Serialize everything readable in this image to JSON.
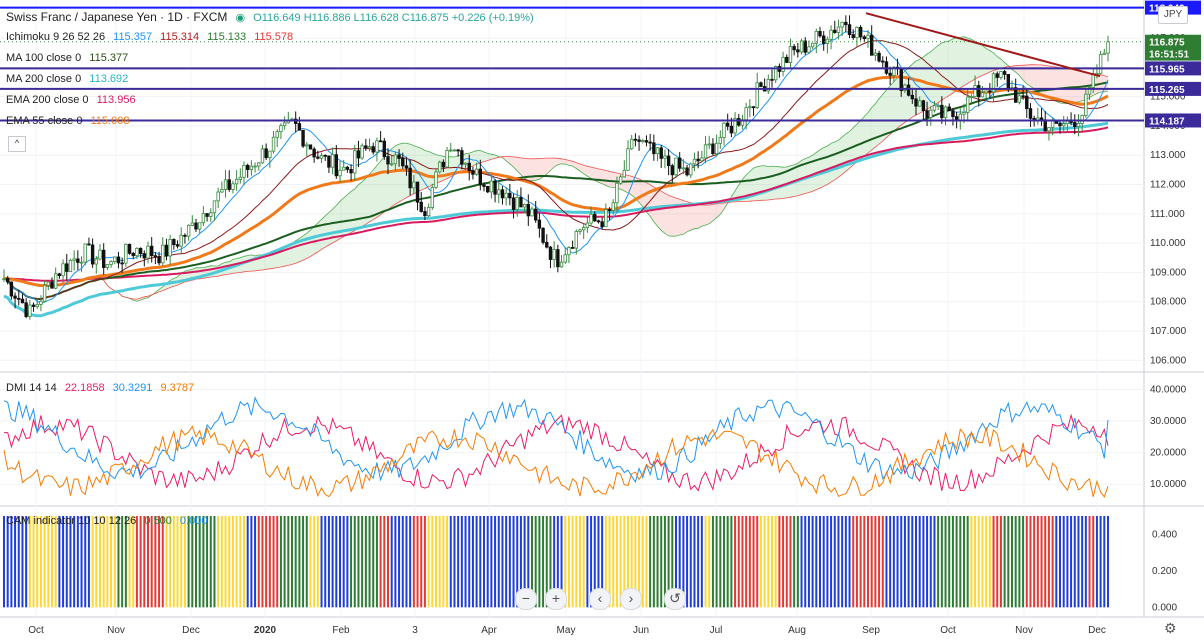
{
  "header": {
    "symbol": "Swiss Franc / Japanese Yen · 1D · FXCM",
    "ohlc": "O116.649 H116.886 L116.628 C116.875 +0.226 (+0.19%)",
    "currency": "JPY"
  },
  "indicators": {
    "ichimoku": {
      "name": "Ichimoku 9 26 52 26",
      "v1": "115.357",
      "v2": "115.314",
      "v3": "115.133",
      "v4": "115.578"
    },
    "ma100": {
      "name": "MA 100 close 0",
      "value": "115.377"
    },
    "ma200": {
      "name": "MA 200 close 0",
      "value": "113.692"
    },
    "ema200": {
      "name": "EMA 200 close 0",
      "value": "113.956"
    },
    "ema55": {
      "name": "EMA 55 close 0",
      "value": "115.008"
    },
    "dmi": {
      "name": "DMI 14 14",
      "v1": "22.1858",
      "v2": "30.3291",
      "v3": "9.3787"
    },
    "cam": {
      "name": "CAM indicator 10 10 12 26",
      "v1": "0.500",
      "v2": "0.000"
    }
  },
  "price_axis": {
    "labels": [
      "118.000",
      "117.000",
      "116.000",
      "115.000",
      "114.000",
      "113.000",
      "112.000",
      "111.000",
      "110.000",
      "109.000",
      "108.000",
      "107.000",
      "106.000"
    ],
    "tags": [
      {
        "text": "118.040",
        "price": 118.04,
        "color": "#1a1aff"
      },
      {
        "text": "116.875",
        "price": 116.875,
        "color": "#2e7d32"
      },
      {
        "text": "16:51:51",
        "price": 116.47,
        "color": "#2e7d32"
      },
      {
        "text": "115.965",
        "price": 115.965,
        "color": "#3a2a9a"
      },
      {
        "text": "115.265",
        "price": 115.265,
        "color": "#3a2a9a"
      },
      {
        "text": "114.187",
        "price": 114.187,
        "color": "#3a2a9a"
      }
    ]
  },
  "dmi_axis": {
    "labels": [
      "40.0000",
      "30.0000",
      "20.0000",
      "10.0000"
    ]
  },
  "cam_axis": {
    "labels": [
      "0.400",
      "0.200",
      "0.000"
    ]
  },
  "time_axis": {
    "labels": [
      "Oct",
      "Nov",
      "Dec",
      "2020",
      "Feb",
      "3",
      "Apr",
      "May",
      "Jun",
      "Jul",
      "Aug",
      "Sep",
      "Oct",
      "Nov",
      "Dec"
    ]
  },
  "toolbar": {
    "zoom_out": "−",
    "zoom_in": "+",
    "scroll_left": "‹",
    "scroll_right": "›",
    "reset": "↺",
    "settings_icon": "⚙",
    "collapse": "^"
  },
  "chart_data": {
    "type": "candlestick",
    "title": "Swiss Franc / Japanese Yen · 1D · FXCM",
    "y_range": [
      105.6,
      118.3
    ],
    "horizontal_levels": [
      118.04,
      115.965,
      115.265,
      114.187
    ],
    "trendline": {
      "from": {
        "x": "Sep",
        "y": 117.85
      },
      "to": {
        "x": "Dec",
        "y": 115.7
      }
    },
    "close_path": [
      {
        "x": "Oct",
        "close": 108.8
      },
      {
        "x": "Oct",
        "close": 107.6
      },
      {
        "x": "Oct",
        "close": 109.0
      },
      {
        "x": "Nov",
        "close": 109.7
      },
      {
        "x": "Nov",
        "close": 109.3
      },
      {
        "x": "Nov",
        "close": 109.8
      },
      {
        "x": "Dec",
        "close": 109.6
      },
      {
        "x": "Dec",
        "close": 110.4
      },
      {
        "x": "Dec",
        "close": 111.5
      },
      {
        "x": "2020",
        "close": 112.3
      },
      {
        "x": "2020",
        "close": 113.2
      },
      {
        "x": "2020",
        "close": 114.1
      },
      {
        "x": "Feb",
        "close": 112.9
      },
      {
        "x": "Feb",
        "close": 112.5
      },
      {
        "x": "Feb",
        "close": 113.4
      },
      {
        "x": "3",
        "close": 112.8
      },
      {
        "x": "3",
        "close": 111.2
      },
      {
        "x": "3",
        "close": 113.5
      },
      {
        "x": "Apr",
        "close": 112.3
      },
      {
        "x": "Apr",
        "close": 111.8
      },
      {
        "x": "Apr",
        "close": 111.0
      },
      {
        "x": "May",
        "close": 109.4
      },
      {
        "x": "May",
        "close": 110.6
      },
      {
        "x": "May",
        "close": 110.9
      },
      {
        "x": "Jun",
        "close": 113.6
      },
      {
        "x": "Jun",
        "close": 112.8
      },
      {
        "x": "Jun",
        "close": 112.4
      },
      {
        "x": "Jul",
        "close": 113.4
      },
      {
        "x": "Jul",
        "close": 114.3
      },
      {
        "x": "Jul",
        "close": 115.6
      },
      {
        "x": "Aug",
        "close": 116.5
      },
      {
        "x": "Aug",
        "close": 117.0
      },
      {
        "x": "Aug",
        "close": 117.6
      },
      {
        "x": "Sep",
        "close": 116.7
      },
      {
        "x": "Sep",
        "close": 115.7
      },
      {
        "x": "Sep",
        "close": 114.5
      },
      {
        "x": "Oct",
        "close": 114.3
      },
      {
        "x": "Oct",
        "close": 115.1
      },
      {
        "x": "Oct",
        "close": 115.7
      },
      {
        "x": "Nov",
        "close": 114.4
      },
      {
        "x": "Nov",
        "close": 113.9
      },
      {
        "x": "Nov",
        "close": 114.4
      },
      {
        "x": "Dec",
        "close": 116.875
      }
    ],
    "series": [
      {
        "name": "MA 100 close 0",
        "color": "#f07a1a",
        "last": 115.377
      },
      {
        "name": "MA 200 close 0",
        "color": "#4ec9d8",
        "last": 113.692
      },
      {
        "name": "EMA 200 close 0",
        "color": "#d81b60",
        "last": 113.956
      },
      {
        "name": "EMA 55 close 0",
        "color": "#f07a1a",
        "last": 115.008
      }
    ],
    "dmi": {
      "y_range": [
        5,
        43
      ],
      "plus_di_last": 22.1858,
      "minus_di_last": 30.3291,
      "adx_last": 9.3787
    },
    "cam": {
      "y_range": [
        -0.02,
        0.5
      ],
      "bar_value": 0.5,
      "colors": [
        "#e53935",
        "#2e7d32",
        "#fdd835",
        "#1e3fd9"
      ]
    }
  }
}
